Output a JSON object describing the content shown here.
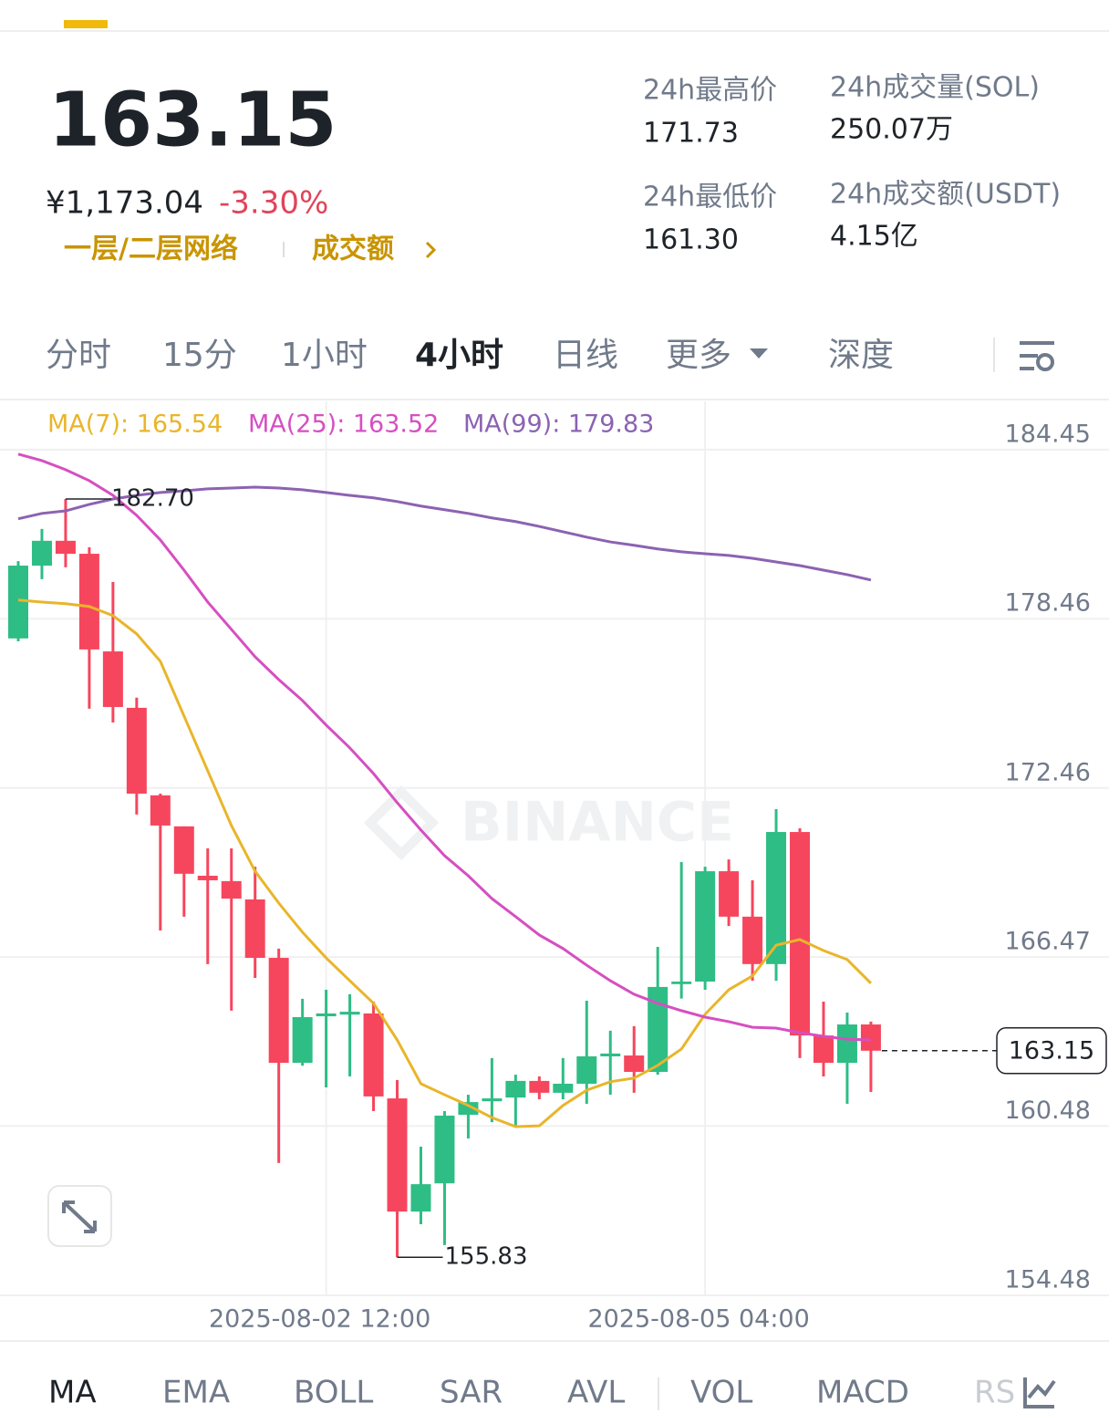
{
  "header": {
    "price": "163.15",
    "price_cny": "¥1,173.04",
    "change": "-3.30%",
    "link_network": "一层/二层网络",
    "link_turnover": "成交额"
  },
  "stats": [
    {
      "label": "24h最高价",
      "value": "171.73"
    },
    {
      "label": "24h成交量(SOL)",
      "value": "250.07万"
    },
    {
      "label": "24h最低价",
      "value": "161.30"
    },
    {
      "label": "24h成交额(USDT)",
      "value": "4.15亿"
    }
  ],
  "tabs": {
    "items": [
      "分时",
      "15分",
      "1小时",
      "4小时",
      "日线",
      "更多",
      "深度"
    ],
    "active": 3
  },
  "indicators": {
    "items": [
      "MA",
      "EMA",
      "BOLL",
      "SAR",
      "AVL",
      "VOL",
      "MACD",
      "RS"
    ],
    "active": 0
  },
  "chart_data": {
    "type": "candlestick",
    "watermark": "BINANCE",
    "x": [
      null,
      null,
      null,
      null,
      null,
      null,
      null,
      null,
      null,
      null,
      null,
      null,
      null,
      "2025-08-02 12:00",
      null,
      null,
      null,
      null,
      null,
      null,
      null,
      null,
      null,
      null,
      null,
      null,
      null,
      null,
      null,
      "2025-08-05 04:00",
      null,
      null,
      null,
      null,
      null,
      null,
      null
    ],
    "open": [
      177.76,
      180.34,
      181.22,
      180.76,
      177.3,
      175.3,
      172.2,
      171.1,
      169.35,
      169.16,
      168.51,
      166.44,
      162.72,
      164.37,
      164.43,
      164.47,
      161.46,
      157.45,
      158.45,
      160.88,
      161.36,
      161.49,
      162.08,
      161.66,
      161.98,
      162.95,
      162.98,
      162.4,
      165.51,
      165.6,
      169.51,
      167.9,
      166.22,
      170.9,
      163.69,
      162.72,
      164.08
    ],
    "high": [
      180.5,
      181.64,
      182.7,
      180.99,
      179.76,
      175.66,
      172.26,
      171.1,
      170.32,
      170.32,
      169.67,
      166.77,
      164.99,
      165.31,
      165.15,
      164.89,
      162.11,
      159.75,
      161.01,
      161.59,
      162.89,
      162.3,
      162.24,
      162.89,
      164.92,
      163.86,
      164.02,
      166.83,
      169.84,
      169.67,
      169.93,
      169.19,
      171.71,
      171.03,
      164.89,
      164.5,
      164.18
    ],
    "low": [
      177.66,
      179.86,
      180.28,
      175.27,
      174.78,
      171.52,
      167.41,
      167.9,
      166.22,
      164.57,
      165.73,
      159.17,
      162.62,
      161.85,
      162.24,
      161.01,
      155.83,
      157.0,
      156.26,
      160.04,
      160.62,
      160.46,
      161.43,
      161.43,
      161.27,
      161.59,
      161.66,
      162.3,
      165.0,
      165.31,
      167.57,
      165.63,
      165.63,
      162.89,
      162.24,
      161.27,
      161.69
    ],
    "close": [
      180.34,
      181.22,
      180.76,
      177.37,
      175.33,
      172.26,
      171.13,
      169.42,
      169.19,
      168.54,
      166.44,
      162.72,
      164.34,
      164.47,
      164.53,
      161.53,
      157.45,
      158.42,
      160.85,
      161.33,
      161.46,
      162.08,
      161.66,
      161.98,
      162.95,
      163.05,
      162.4,
      165.41,
      165.6,
      169.51,
      167.9,
      166.22,
      170.9,
      163.69,
      162.72,
      164.08,
      163.15
    ],
    "up_color": "#2ebd85",
    "down_color": "#f6465d",
    "series": [
      {
        "name": "MA(7): 165.54",
        "color": "#e9b52a",
        "values": [
          179.12,
          179.05,
          178.99,
          178.89,
          178.57,
          177.92,
          176.95,
          175.01,
          173.07,
          171.13,
          169.51,
          168.38,
          167.35,
          166.44,
          165.63,
          164.83,
          163.53,
          161.98,
          161.59,
          161.21,
          160.78,
          160.46,
          160.49,
          161.21,
          161.75,
          162.05,
          162.18,
          162.63,
          163.21,
          164.44,
          165.31,
          165.8,
          166.89,
          167.09,
          166.7,
          166.38,
          165.54
        ]
      },
      {
        "name": "MA(25): 163.52",
        "color": "#d64fc1",
        "values": [
          184.29,
          184.06,
          183.74,
          183.35,
          182.83,
          182.12,
          181.25,
          180.18,
          179.05,
          178.08,
          177.11,
          176.3,
          175.56,
          174.69,
          173.88,
          172.97,
          171.94,
          170.97,
          170.06,
          169.35,
          168.54,
          167.9,
          167.25,
          166.77,
          166.18,
          165.63,
          165.15,
          164.83,
          164.57,
          164.34,
          164.18,
          163.98,
          163.95,
          163.79,
          163.66,
          163.56,
          163.53
        ]
      },
      {
        "name": "MA(99): 179.83",
        "color": "#8c62b2",
        "values": [
          182.0,
          182.19,
          182.28,
          182.51,
          182.7,
          182.83,
          182.93,
          182.99,
          183.06,
          183.09,
          183.12,
          183.09,
          183.03,
          182.93,
          182.83,
          182.74,
          182.61,
          182.45,
          182.32,
          182.19,
          182.03,
          181.9,
          181.73,
          181.54,
          181.35,
          181.18,
          181.06,
          180.93,
          180.83,
          180.76,
          180.7,
          180.6,
          180.47,
          180.34,
          180.18,
          180.02,
          179.83
        ]
      }
    ],
    "high_label": {
      "value": 182.7,
      "label": "182.70"
    },
    "low_label": {
      "value": 155.83,
      "label": "155.83"
    },
    "last_label": {
      "value": 163.15,
      "label": "163.15"
    },
    "ylim": [
      154.48,
      186.16
    ],
    "yticks": [
      184.45,
      178.46,
      172.46,
      166.47,
      160.48,
      154.48
    ],
    "grid": true
  }
}
